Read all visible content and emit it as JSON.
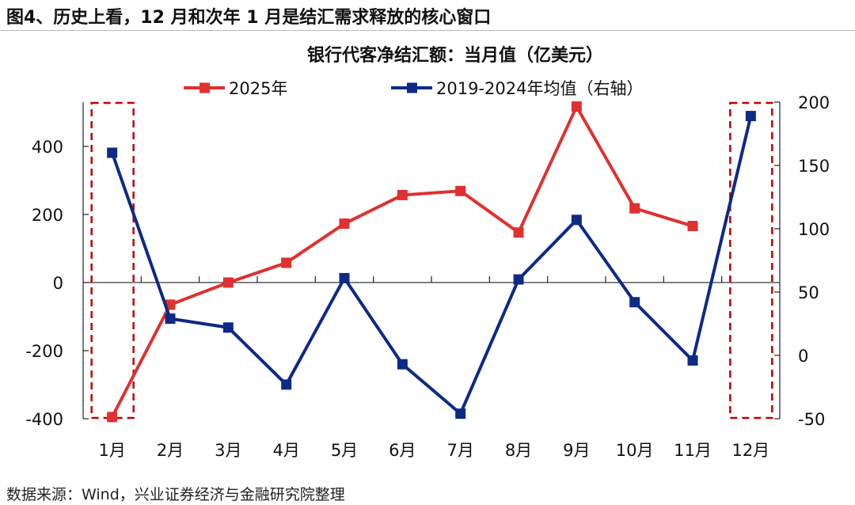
{
  "figure_title": "图4、历史上看，12 月和次年 1 月是结汇需求释放的核心窗口",
  "source": "数据来源：Wind，兴业证券经济与金融研究院整理",
  "chart_data": {
    "type": "line",
    "title": "银行代客净结汇额：当月值（亿美元）",
    "categories": [
      "1月",
      "2月",
      "3月",
      "4月",
      "5月",
      "6月",
      "7月",
      "8月",
      "9月",
      "10月",
      "11月",
      "12月"
    ],
    "left_axis": {
      "ylim": [
        -400,
        530
      ],
      "ticks": [
        -400,
        -200,
        0,
        200,
        400
      ],
      "tick_labels": [
        "-400",
        "-200",
        "0",
        "200",
        "400"
      ]
    },
    "right_axis": {
      "ylim": [
        -50,
        200
      ],
      "ticks": [
        -50,
        0,
        50,
        100,
        150,
        200
      ],
      "tick_labels": [
        "-50",
        "0",
        "50",
        "100",
        "150",
        "200"
      ]
    },
    "series": [
      {
        "name": "2025年",
        "axis": "left",
        "color": "#e03030",
        "values": [
          -395,
          -65,
          0,
          58,
          173,
          257,
          269,
          147,
          517,
          218,
          166,
          null
        ]
      },
      {
        "name": "2019-2024年均值（右轴）",
        "axis": "right",
        "color": "#0d2a85",
        "values": [
          160,
          29,
          22,
          -23,
          61,
          -7,
          -46,
          60,
          107,
          42,
          -4,
          189
        ]
      }
    ],
    "highlight_categories": [
      "1月",
      "12月"
    ],
    "highlight_color": "#c00000",
    "grid": false,
    "legend_position": "top"
  }
}
